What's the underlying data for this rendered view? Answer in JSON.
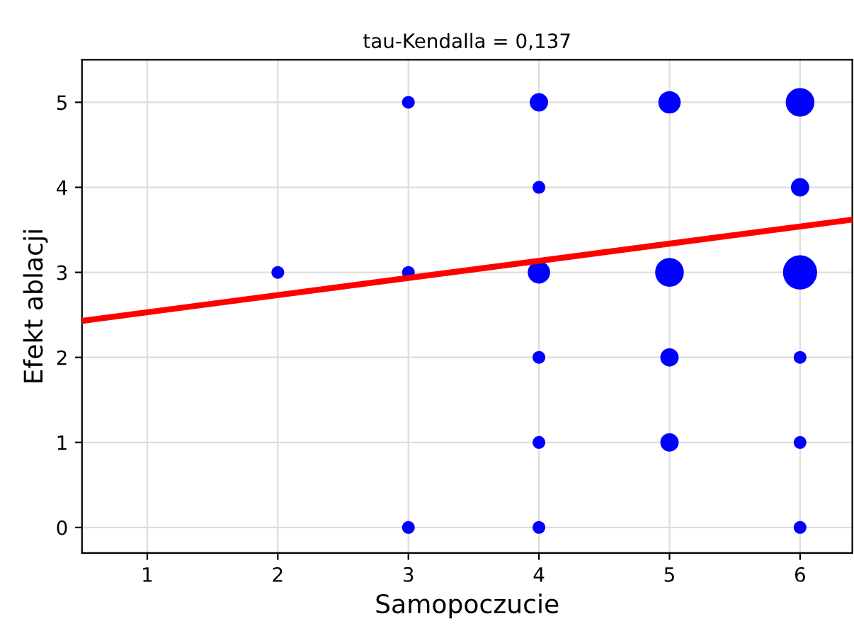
{
  "chart_data": {
    "type": "bubble",
    "title": "tau-Kendalla = 0,137",
    "xlabel": "Samopoczucie",
    "ylabel": "Efekt ablacji",
    "xlim": [
      0.5,
      6.4
    ],
    "ylim": [
      -0.3,
      5.5
    ],
    "xticks": [
      1,
      2,
      3,
      4,
      5,
      6
    ],
    "yticks": [
      0,
      1,
      2,
      3,
      4,
      5
    ],
    "grid": true,
    "series": [
      {
        "color": "#0000ff",
        "x": [
          2,
          3,
          3,
          3,
          4,
          4,
          4,
          4,
          4,
          4,
          5,
          5,
          5,
          5,
          6,
          6,
          6,
          6,
          6,
          6
        ],
        "values": [
          3,
          5,
          3,
          0,
          5,
          4,
          3,
          2,
          1,
          0,
          5,
          3,
          2,
          1,
          5,
          4,
          3,
          2,
          1,
          0
        ],
        "sizes": [
          0.14,
          0.14,
          0.14,
          0.14,
          0.29,
          0.14,
          0.43,
          0.14,
          0.14,
          0.14,
          0.43,
          0.71,
          0.29,
          0.29,
          0.71,
          0.29,
          1,
          0.14,
          0.14,
          0.14
        ]
      },
      {
        "type": "line",
        "color": "#ff0000",
        "x": [
          0.5,
          6.4
        ],
        "values": [
          2.43,
          3.62
        ]
      }
    ]
  }
}
